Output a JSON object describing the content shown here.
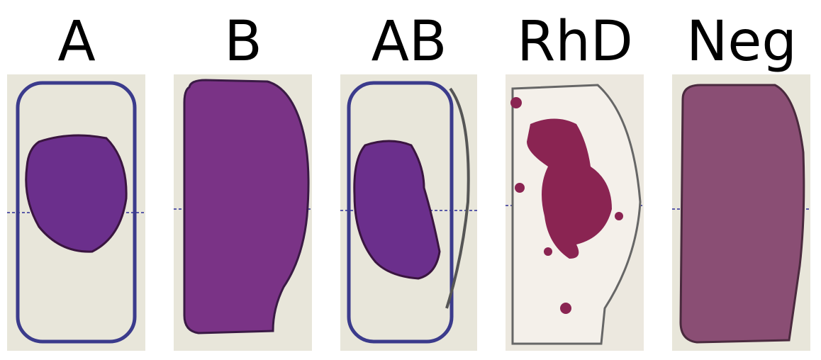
{
  "panels": [
    {
      "label": "A"
    },
    {
      "label": "B"
    },
    {
      "label": "AB"
    },
    {
      "label": "RhD"
    },
    {
      "label": "Neg"
    }
  ]
}
